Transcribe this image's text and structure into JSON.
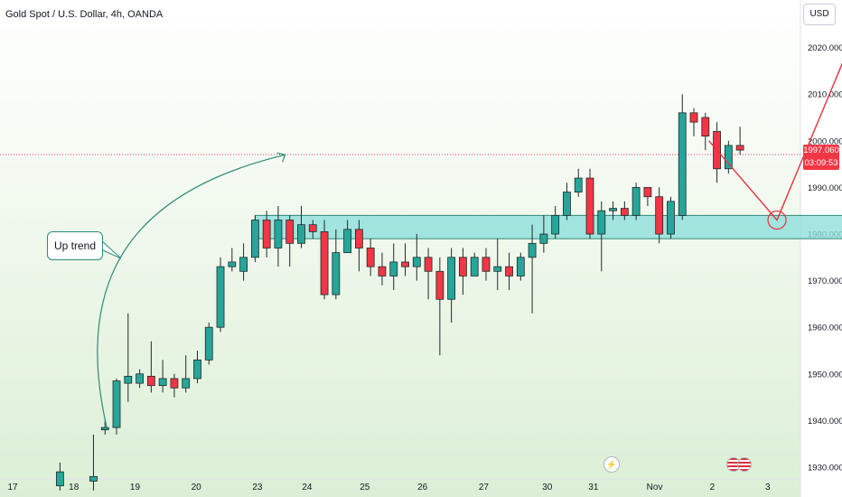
{
  "header": {
    "title": "Gold Spot / U.S. Dollar, 4h, OANDA",
    "currency": "USD"
  },
  "price_tag": {
    "price": "1997.060",
    "timer": "03:09:53"
  },
  "annotation": {
    "label": "Up trend"
  },
  "events": {
    "bolt_icon": "lightning-icon",
    "flag_icon": "us-flag-icon"
  },
  "colors": {
    "up": "#26a69a",
    "down": "#f23645",
    "zone": "#8fdedb",
    "arrow": "#e8323c",
    "trend": "#2e8a7a"
  },
  "chart_data": {
    "type": "candlestick",
    "xlabel": "",
    "ylabel": "",
    "ylim": [
      1929,
      2025
    ],
    "yticks": [
      "2020.000",
      "2010.000",
      "2000.000",
      "1990.000",
      "1980.000",
      "1970.000",
      "1960.000",
      "1950.000",
      "1940.000",
      "1930.000"
    ],
    "xticks": [
      {
        "label": "17",
        "t": 0.0
      },
      {
        "label": "18",
        "t": 5.3
      },
      {
        "label": "19",
        "t": 10.6
      },
      {
        "label": "20",
        "t": 15.9
      },
      {
        "label": "23",
        "t": 21.2
      },
      {
        "label": "24",
        "t": 25.5
      },
      {
        "label": "25",
        "t": 30.5
      },
      {
        "label": "26",
        "t": 35.5
      },
      {
        "label": "27",
        "t": 40.8
      },
      {
        "label": "30",
        "t": 46.3
      },
      {
        "label": "31",
        "t": 50.3
      },
      {
        "label": "Nov",
        "t": 55.6
      },
      {
        "label": "2",
        "t": 60.6
      },
      {
        "label": "3",
        "t": 65.4
      }
    ],
    "candles": [
      [
        4.1,
        1926,
        1929,
        1925,
        1931
      ],
      [
        7.0,
        1927,
        1928,
        1925,
        1937
      ],
      [
        8.0,
        1938,
        1938.5,
        1937,
        1940
      ],
      [
        9.0,
        1938.5,
        1948.5,
        1937,
        1949
      ],
      [
        10.0,
        1948,
        1949.5,
        1944,
        1963
      ],
      [
        11.0,
        1948,
        1950,
        1947,
        1951
      ],
      [
        12.0,
        1949.5,
        1947.5,
        1946,
        1957
      ],
      [
        13.0,
        1947.5,
        1949,
        1946,
        1953
      ],
      [
        14.0,
        1949,
        1947,
        1945,
        1950
      ],
      [
        15.0,
        1947,
        1949,
        1946,
        1954
      ],
      [
        16.0,
        1949,
        1953,
        1948,
        1955
      ],
      [
        17.0,
        1953,
        1960,
        1952,
        1961
      ],
      [
        18.0,
        1960,
        1973,
        1959,
        1975
      ],
      [
        19.0,
        1973,
        1974,
        1972,
        1977
      ],
      [
        20.0,
        1972,
        1975,
        1970,
        1978
      ],
      [
        21.0,
        1975,
        1983,
        1974,
        1984
      ],
      [
        22.0,
        1983,
        1977,
        1975,
        1985
      ],
      [
        23.0,
        1977,
        1983,
        1973,
        1986
      ],
      [
        24.0,
        1983,
        1978,
        1973,
        1984
      ],
      [
        25.0,
        1978,
        1982,
        1977,
        1986
      ],
      [
        26.0,
        1982,
        1980.5,
        1979,
        1983
      ],
      [
        27.0,
        1980.5,
        1967,
        1966,
        1983
      ],
      [
        28.0,
        1967,
        1976,
        1966,
        1981
      ],
      [
        29.0,
        1976,
        1981,
        1976,
        1983
      ],
      [
        30.0,
        1981,
        1977,
        1972,
        1983
      ],
      [
        31.0,
        1977,
        1973,
        1971,
        1979
      ],
      [
        32.0,
        1973,
        1971,
        1969,
        1976
      ],
      [
        33.0,
        1971,
        1974,
        1968,
        1978
      ],
      [
        34.0,
        1974,
        1973,
        1971,
        1978
      ],
      [
        35.0,
        1973,
        1975,
        1970,
        1980
      ],
      [
        36.0,
        1975,
        1972,
        1966,
        1977
      ],
      [
        37.0,
        1972,
        1966,
        1954,
        1975
      ],
      [
        38.0,
        1966,
        1975,
        1961,
        1977
      ],
      [
        39.0,
        1975,
        1971,
        1967,
        1977
      ],
      [
        40.0,
        1971,
        1975,
        1971,
        1976
      ],
      [
        41.0,
        1975,
        1972,
        1970,
        1977
      ],
      [
        42.0,
        1972,
        1973,
        1968,
        1979
      ],
      [
        43.0,
        1973,
        1971,
        1968,
        1976
      ],
      [
        44.0,
        1971,
        1975,
        1970,
        1976
      ],
      [
        45.0,
        1975,
        1978,
        1963,
        1982
      ],
      [
        46.0,
        1978,
        1980,
        1976,
        1984
      ],
      [
        47.0,
        1980,
        1984,
        1979,
        1986
      ],
      [
        48.0,
        1984,
        1989,
        1983,
        1991
      ],
      [
        49.0,
        1989,
        1992,
        1988,
        1994
      ],
      [
        50.0,
        1992,
        1980,
        1979,
        1994
      ],
      [
        51.0,
        1980,
        1985,
        1972,
        1987
      ],
      [
        52.0,
        1985,
        1985.5,
        1983,
        1987
      ],
      [
        53.0,
        1985.5,
        1984,
        1983,
        1987
      ],
      [
        54.0,
        1984,
        1990,
        1983,
        1991
      ],
      [
        55.0,
        1990,
        1988,
        1986,
        1990
      ],
      [
        56.0,
        1988,
        1980,
        1978,
        1990
      ],
      [
        57.0,
        1980,
        1987,
        1979,
        1988
      ],
      [
        58.0,
        1984,
        2006,
        1983,
        2010
      ],
      [
        59.0,
        2006,
        2004,
        2001,
        2007
      ],
      [
        60.0,
        2005,
        2001,
        1998,
        2006
      ],
      [
        61.0,
        2002,
        1994,
        1991,
        2004
      ],
      [
        62.0,
        1994,
        1999,
        1993,
        2000
      ],
      [
        63.0,
        1999,
        1998,
        1997,
        2003
      ]
    ],
    "support_zone": {
      "t0": 21.0,
      "t1": 74.5,
      "ylow": 1979,
      "yhigh": 1984
    },
    "forecast_path": [
      [
        60.3,
        2000
      ],
      [
        66.2,
        1983
      ],
      [
        72.6,
        2021
      ]
    ],
    "current_price": 1997.06,
    "trend_arrow": {
      "from": [
        8.2,
        1938
      ],
      "to": [
        23.6,
        1997
      ]
    }
  }
}
